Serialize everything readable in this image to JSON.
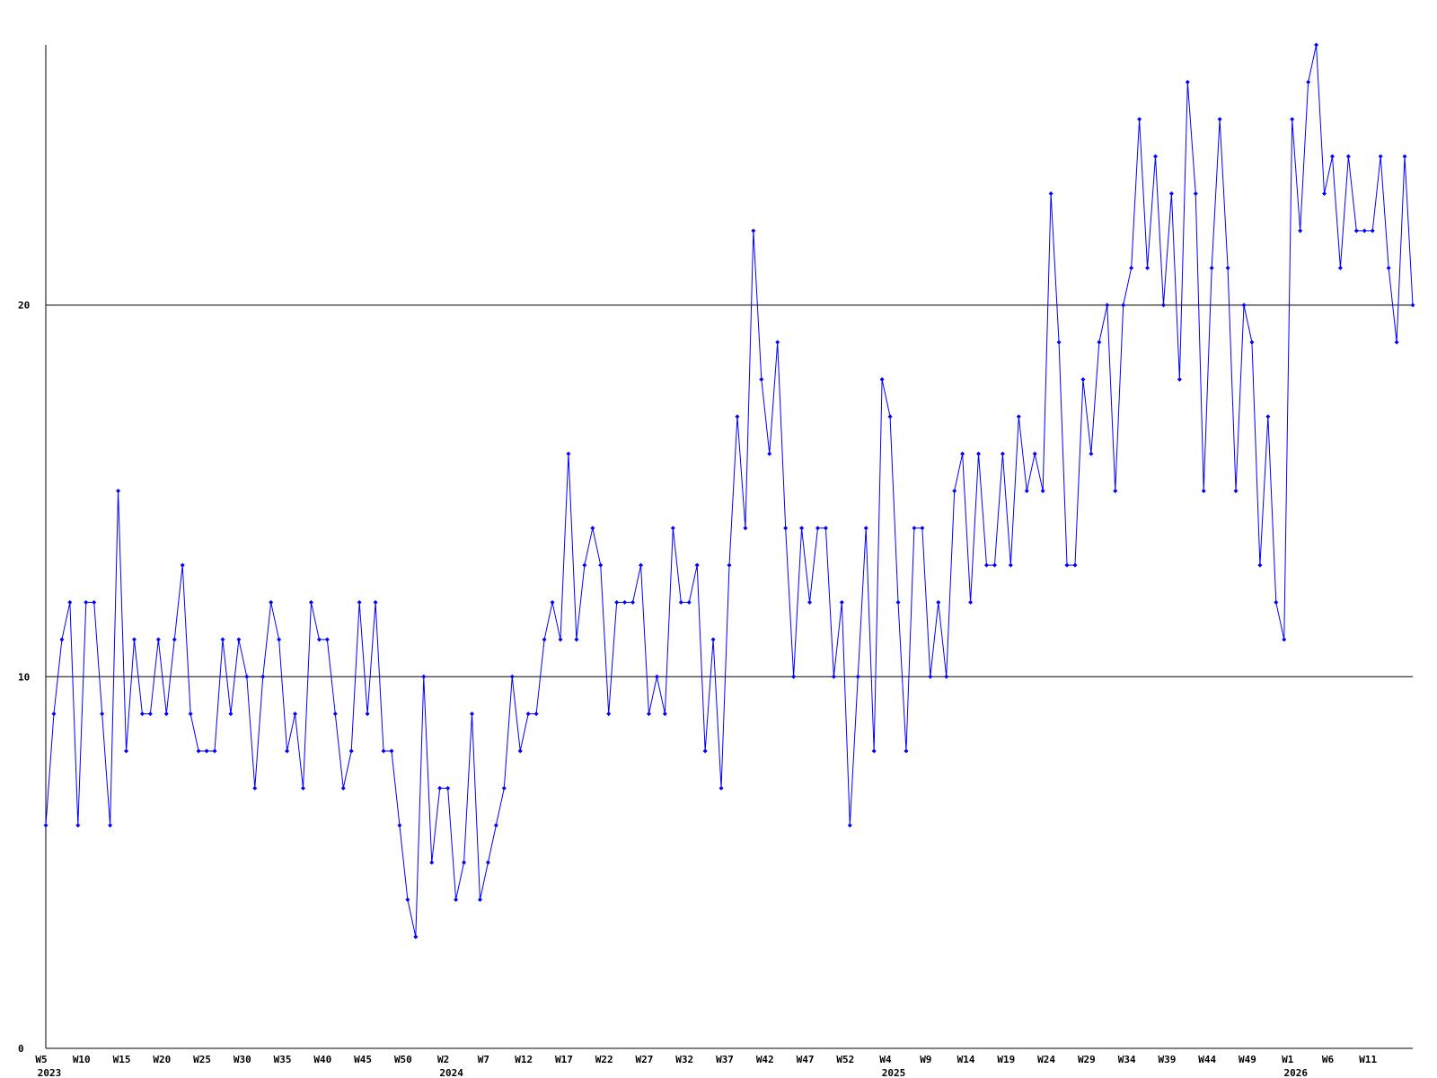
{
  "chart_data": {
    "type": "line",
    "x": [
      "W5",
      null,
      null,
      null,
      null,
      "W10",
      null,
      null,
      null,
      null,
      "W15",
      null,
      null,
      null,
      null,
      "W20",
      null,
      null,
      null,
      null,
      "W25",
      null,
      null,
      null,
      null,
      "W30",
      null,
      null,
      null,
      null,
      "W35",
      null,
      null,
      null,
      null,
      "W40",
      null,
      null,
      null,
      null,
      "W45",
      null,
      null,
      null,
      null,
      "W50",
      null,
      null,
      null,
      null,
      "W2",
      null,
      null,
      null,
      null,
      "W7",
      null,
      null,
      null,
      null,
      "W12",
      null,
      null,
      null,
      null,
      "W17",
      null,
      null,
      null,
      null,
      "W22",
      null,
      null,
      null,
      null,
      "W27",
      null,
      null,
      null,
      null,
      "W32",
      null,
      null,
      null,
      null,
      "W37",
      null,
      null,
      null,
      null,
      "W42",
      null,
      null,
      null,
      null,
      "W47",
      null,
      null,
      null,
      null,
      "W52",
      null,
      null,
      null,
      null,
      "W4",
      null,
      null,
      null,
      null,
      "W9",
      null,
      null,
      null,
      null,
      "W14",
      null,
      null,
      null,
      null,
      "W19",
      null,
      null,
      null,
      null,
      "W24",
      null,
      null,
      null,
      null,
      "W29",
      null,
      null,
      null,
      null,
      "W34",
      null,
      null,
      null,
      null,
      "W39",
      null,
      null,
      null,
      null,
      "W44",
      null,
      null,
      null,
      null,
      "W49",
      null,
      null,
      null,
      null,
      "W1",
      null,
      null,
      null,
      null,
      "W6",
      null,
      null,
      null,
      null,
      "W11",
      null,
      null,
      null,
      null,
      null
    ],
    "x_years": [
      "2023",
      null,
      null,
      null,
      null,
      null,
      null,
      null,
      null,
      null,
      null,
      null,
      null,
      null,
      null,
      null,
      null,
      null,
      null,
      null,
      null,
      null,
      null,
      null,
      null,
      null,
      null,
      null,
      null,
      null,
      null,
      null,
      null,
      null,
      null,
      null,
      null,
      null,
      null,
      null,
      null,
      null,
      null,
      null,
      null,
      null,
      null,
      null,
      null,
      null,
      "2024",
      null,
      null,
      null,
      null,
      null,
      null,
      null,
      null,
      null,
      null,
      null,
      null,
      null,
      null,
      null,
      null,
      null,
      null,
      null,
      null,
      null,
      null,
      null,
      null,
      null,
      null,
      null,
      null,
      null,
      null,
      null,
      null,
      null,
      null,
      null,
      null,
      null,
      null,
      null,
      null,
      null,
      null,
      null,
      null,
      null,
      null,
      null,
      null,
      null,
      null,
      null,
      null,
      null,
      null,
      "2025",
      null,
      null,
      null,
      null,
      null,
      null,
      null,
      null,
      null,
      null,
      null,
      null,
      null,
      null,
      null,
      null,
      null,
      null,
      null,
      null,
      null,
      null,
      null,
      null,
      null,
      null,
      null,
      null,
      null,
      null,
      null,
      null,
      null,
      null,
      null,
      null,
      null,
      null,
      null,
      null,
      null,
      null,
      null,
      null,
      null,
      null,
      null,
      null,
      null,
      "2026",
      null,
      null,
      null,
      null,
      null,
      null,
      null,
      null,
      null,
      null,
      null,
      null,
      null,
      null,
      null
    ],
    "series": [
      {
        "color": "#0000ff",
        "values": [
          6,
          9,
          11,
          12,
          6,
          12,
          12,
          9,
          6,
          15,
          8,
          11,
          9,
          9,
          11,
          9,
          11,
          13,
          9,
          8,
          8,
          8,
          11,
          9,
          11,
          10,
          7,
          10,
          12,
          11,
          8,
          9,
          7,
          12,
          11,
          11,
          9,
          7,
          8,
          12,
          9,
          12,
          8,
          8,
          6,
          4,
          3,
          10,
          5,
          7,
          7,
          4,
          5,
          9,
          4,
          5,
          6,
          7,
          10,
          8,
          9,
          9,
          11,
          12,
          11,
          16,
          11,
          13,
          14,
          13,
          9,
          12,
          12,
          12,
          13,
          9,
          10,
          9,
          14,
          12,
          12,
          13,
          8,
          11,
          7,
          13,
          17,
          14,
          22,
          18,
          16,
          19,
          14,
          10,
          14,
          12,
          14,
          14,
          10,
          12,
          6,
          10,
          14,
          8,
          18,
          17,
          12,
          8,
          14,
          14,
          10,
          12,
          10,
          15,
          16,
          12,
          16,
          13,
          13,
          16,
          13,
          17,
          15,
          16,
          15,
          23,
          19,
          13,
          13,
          18,
          16,
          19,
          20,
          15,
          20,
          21,
          25,
          21,
          24,
          20,
          23,
          18,
          26,
          23,
          15,
          21,
          25,
          21,
          15,
          20,
          19,
          13,
          17,
          12,
          11,
          25,
          22,
          26,
          27,
          23,
          24,
          21,
          24,
          22,
          22,
          22,
          24,
          21,
          19,
          24,
          20
        ]
      }
    ],
    "ylim": [
      0,
      27
    ],
    "yticks": [
      0,
      10,
      20
    ],
    "grid": true
  }
}
